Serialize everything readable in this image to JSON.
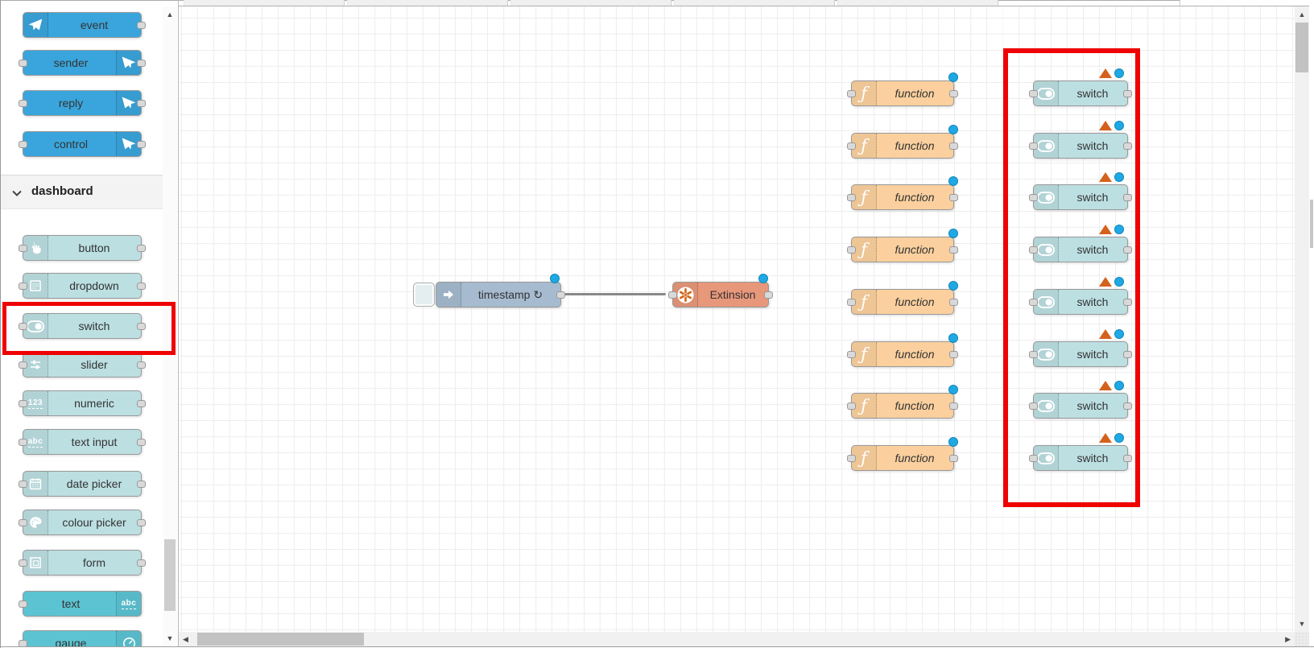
{
  "workspace": {
    "tab_count": 5
  },
  "palette": {
    "sections": [
      {
        "id": "telegram",
        "items": [
          {
            "label": "event",
            "icon": "paper-plane-icon",
            "iconSide": "left",
            "ports": "out",
            "kind": "telegram"
          },
          {
            "label": "sender",
            "icon": "paper-plane-icon",
            "iconSide": "right",
            "ports": "both",
            "kind": "telegram"
          },
          {
            "label": "reply",
            "icon": "paper-plane-icon",
            "iconSide": "right",
            "ports": "both",
            "kind": "telegram"
          },
          {
            "label": "control",
            "icon": "paper-plane-icon",
            "iconSide": "right",
            "ports": "both",
            "kind": "telegram"
          }
        ]
      },
      {
        "id": "dashboard",
        "header": {
          "label": "dashboard",
          "collapsed": false
        },
        "items": [
          {
            "label": "button",
            "icon": "hand-pointer-icon",
            "iconSide": "left",
            "ports": "both",
            "kind": "widget"
          },
          {
            "label": "dropdown",
            "icon": "list-icon",
            "iconSide": "left",
            "ports": "both",
            "kind": "widget"
          },
          {
            "label": "switch",
            "icon": "toggle-icon",
            "iconSide": "left",
            "ports": "both",
            "kind": "widget",
            "highlighted": true
          },
          {
            "label": "slider",
            "icon": "sliders-icon",
            "iconSide": "left",
            "ports": "both",
            "kind": "widget"
          },
          {
            "label": "numeric",
            "icon": "numeric-123-icon",
            "iconSide": "left",
            "ports": "both",
            "kind": "widget"
          },
          {
            "label": "text input",
            "icon": "abc-icon",
            "iconSide": "left",
            "ports": "both",
            "kind": "widget"
          },
          {
            "label": "date picker",
            "icon": "calendar-icon",
            "iconSide": "left",
            "ports": "both",
            "kind": "widget"
          },
          {
            "label": "colour picker",
            "icon": "palette-icon",
            "iconSide": "left",
            "ports": "both",
            "kind": "widget"
          },
          {
            "label": "form",
            "icon": "form-icon",
            "iconSide": "left",
            "ports": "both",
            "kind": "widget"
          },
          {
            "label": "text",
            "icon": "abc-icon",
            "iconSide": "right",
            "ports": "in",
            "kind": "widget-out"
          },
          {
            "label": "gauge",
            "icon": "gauge-icon",
            "iconSide": "right",
            "ports": "in",
            "kind": "widget-out"
          }
        ]
      }
    ]
  },
  "canvas": {
    "flow": {
      "inject": {
        "label": "timestamp ↻"
      },
      "target": {
        "label": "Extinsion"
      }
    },
    "function_column": {
      "label": "function",
      "count": 8
    },
    "switch_column": {
      "label": "switch",
      "count": 8
    }
  },
  "annotations": {
    "palette_switch_highlight": true,
    "switch_column_highlight": true
  },
  "icons_glyphs": {
    "up": "▲",
    "down": "▼",
    "left": "◀",
    "right": "▶"
  },
  "colors": {
    "telegram_blue": "#3aa5dc",
    "widget_teal": "#bcdfe2",
    "widget_teal_dark": "#5cc3d2",
    "inject_gray_blue": "#a6bbcf",
    "function_orange": "#fbd09e",
    "extension_salmon": "#e7977a",
    "status_dot_blue": "#1fa9e4",
    "warning_triangle_orange": "#d4611c",
    "annotation_red": "#ee0202"
  }
}
